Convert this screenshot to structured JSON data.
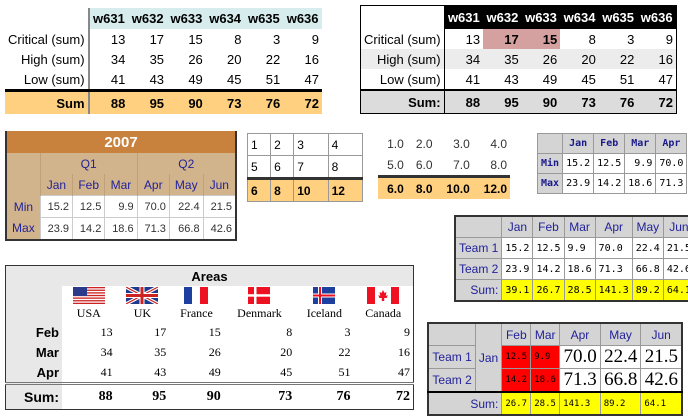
{
  "weeks": [
    "w631",
    "w632",
    "w633",
    "w634",
    "w635",
    "w636"
  ],
  "week_rows": [
    {
      "label": "Critical (sum)",
      "values": [
        "13",
        "17",
        "15",
        "8",
        "3",
        "9"
      ]
    },
    {
      "label": "High (sum)",
      "values": [
        "34",
        "35",
        "26",
        "20",
        "22",
        "16"
      ]
    },
    {
      "label": "Low (sum)",
      "values": [
        "41",
        "43",
        "49",
        "45",
        "51",
        "47"
      ]
    }
  ],
  "week_sum": {
    "label1": "Sum",
    "label2": "Sum:",
    "values": [
      "88",
      "95",
      "90",
      "73",
      "76",
      "72"
    ]
  },
  "t3": {
    "title": "2007",
    "q1": "Q1",
    "q2": "Q2",
    "months": [
      "Jan",
      "Feb",
      "Mar",
      "Apr",
      "May",
      "Jun"
    ],
    "rows": [
      {
        "label": "Min",
        "values": [
          "15.2",
          "12.5",
          "9.9",
          "70.0",
          "22.4",
          "21.5"
        ]
      },
      {
        "label": "Max",
        "values": [
          "23.9",
          "14.2",
          "18.6",
          "71.3",
          "66.8",
          "42.6"
        ]
      }
    ]
  },
  "t4": {
    "rows": [
      [
        "1",
        "2",
        "3",
        "4"
      ],
      [
        "5",
        "6",
        "7",
        "8"
      ]
    ],
    "sum": [
      "6",
      "8",
      "10",
      "12"
    ]
  },
  "t5": {
    "rows": [
      [
        "1.0",
        "2.0",
        "3.0",
        "4.0"
      ],
      [
        "5.0",
        "6.0",
        "7.0",
        "8.0"
      ]
    ],
    "sum": [
      "6.0",
      "8.0",
      "10.0",
      "12.0"
    ]
  },
  "t6": {
    "months": [
      "Jan",
      "Feb",
      "Mar",
      "Apr"
    ],
    "rows": [
      {
        "label": "Min",
        "values": [
          "15.2",
          "12.5",
          "9.9",
          "70.0"
        ]
      },
      {
        "label": "Max",
        "values": [
          "23.9",
          "14.2",
          "18.6",
          "71.3"
        ]
      }
    ]
  },
  "teams": {
    "months": [
      "Jan",
      "Feb",
      "Mar",
      "Apr",
      "May",
      "Jun"
    ],
    "rows": [
      {
        "label": "Team 1",
        "values": [
          "15.2",
          "12.5",
          "9.9",
          "70.0",
          "22.4",
          "21.5"
        ]
      },
      {
        "label": "Team 2",
        "values": [
          "23.9",
          "14.2",
          "18.6",
          "71.3",
          "66.8",
          "42.6"
        ]
      }
    ],
    "sum_label": "Sum:",
    "sum": [
      "39.1",
      "26.7",
      "28.5",
      "141.3",
      "89.2",
      "64.1"
    ]
  },
  "areas": {
    "title": "Areas",
    "countries": [
      {
        "name": "USA",
        "flag": "usa-flag"
      },
      {
        "name": "UK",
        "flag": "uk-flag"
      },
      {
        "name": "France",
        "flag": "france-flag"
      },
      {
        "name": "Denmark",
        "flag": "denmark-flag"
      },
      {
        "name": "Iceland",
        "flag": "iceland-flag"
      },
      {
        "name": "Canada",
        "flag": "canada-flag"
      }
    ],
    "rows": [
      {
        "label": "Feb",
        "values": [
          "13",
          "17",
          "15",
          "8",
          "3",
          "9"
        ]
      },
      {
        "label": "Mar",
        "values": [
          "34",
          "35",
          "26",
          "20",
          "22",
          "16"
        ]
      },
      {
        "label": "Apr",
        "values": [
          "41",
          "43",
          "49",
          "45",
          "51",
          "47"
        ]
      }
    ],
    "sum_label": "Sum:",
    "sum": [
      "88",
      "95",
      "90",
      "73",
      "76",
      "72"
    ]
  },
  "colors": {
    "teal_header": "#d7eded",
    "orange_sum": "#ffd07f",
    "pink_highlight": "#d4a0a0",
    "brown_title": "#c8823e",
    "tan": "#d2b48c",
    "yellow": "#ffff00",
    "red": "#ff0000"
  }
}
